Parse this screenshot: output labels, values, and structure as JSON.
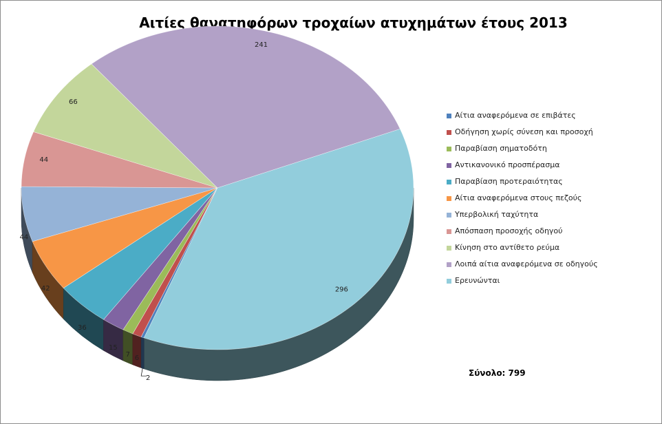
{
  "chart_data": {
    "type": "pie",
    "title": "Αιτίες θανατηφόρων τροχαίων ατυχημάτων έτους 2013",
    "categories": [
      "Αίτια αναφερόμενα σε επιβάτες",
      "Οδήγηση χωρίς σύνεση και προσοχή",
      "Παραβίαση σηματοδότη",
      "Αντικανονικό προσπέρασμα",
      "Παραβίαση προτεραιότητας",
      "Αίτια αναφερόμενα στους πεζούς",
      "Υπερβολική ταχύτητα",
      "Απόσπαση προσοχής οδηγού",
      "Κίνηση στο αντίθετο ρεύμα",
      "Λοιπά αίτια αναφερόμενα σε οδηγούς",
      "Ερευνώνται"
    ],
    "values": [
      2,
      6,
      7,
      15,
      36,
      42,
      44,
      44,
      66,
      241,
      296
    ],
    "colors": [
      "#4F81BD",
      "#C0504D",
      "#9BBB59",
      "#8064A2",
      "#4BACC6",
      "#F79646",
      "#95B3D7",
      "#D99694",
      "#C3D69B",
      "#B2A1C7",
      "#92CDDC"
    ],
    "legend_position": "right",
    "style": "3d"
  },
  "total_label": "Σύνολο: 799"
}
